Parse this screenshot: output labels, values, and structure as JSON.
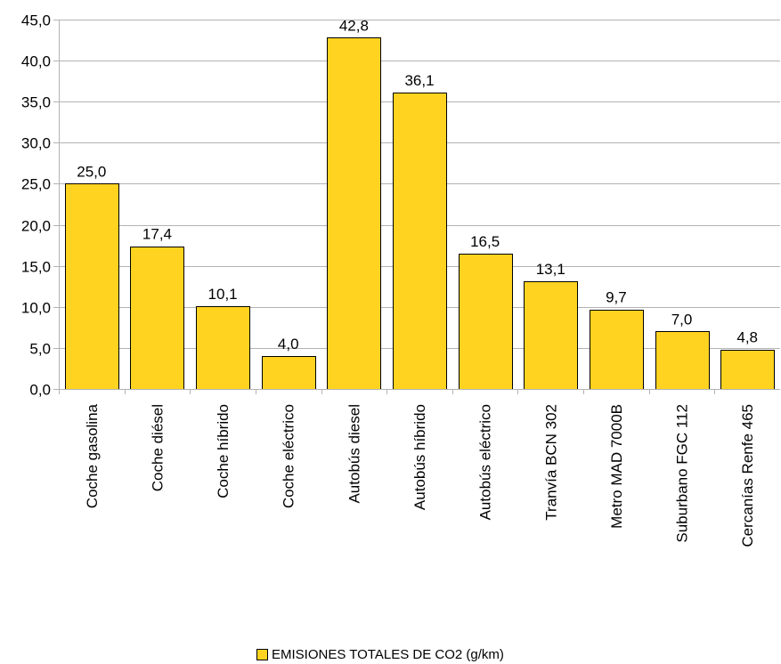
{
  "chart_data": {
    "type": "bar",
    "categories": [
      "Coche gasolina",
      "Coche diésel",
      "Coche híbrido",
      "Coche eléctrico",
      "Autobús diesel",
      "Autobús híbrido",
      "Autobús eléctrico",
      "Tranvía BCN 302",
      "Metro MAD 7000B",
      "Suburbano FGC 112",
      "Cercanías Renfe 465"
    ],
    "series": [
      {
        "name": "EMISIONES TOTALES DE CO2 (g/km)",
        "values": [
          25.0,
          17.4,
          10.1,
          4.0,
          42.8,
          36.1,
          16.5,
          13.1,
          9.7,
          7.0,
          4.8
        ],
        "labels": [
          "25,0",
          "17,4",
          "10,1",
          "4,0",
          "42,8",
          "36,1",
          "16,5",
          "13,1",
          "9,7",
          "7,0",
          "4,8"
        ],
        "color": "#FFD320"
      }
    ],
    "ylim": [
      0,
      45
    ],
    "yticks": [
      0,
      5,
      10,
      15,
      20,
      25,
      30,
      35,
      40,
      45
    ],
    "ytick_labels": [
      "0,0",
      "5,0",
      "10,0",
      "15,0",
      "20,0",
      "25,0",
      "30,0",
      "35,0",
      "40,0",
      "45,0"
    ],
    "grid": true,
    "legend_position": "bottom"
  }
}
